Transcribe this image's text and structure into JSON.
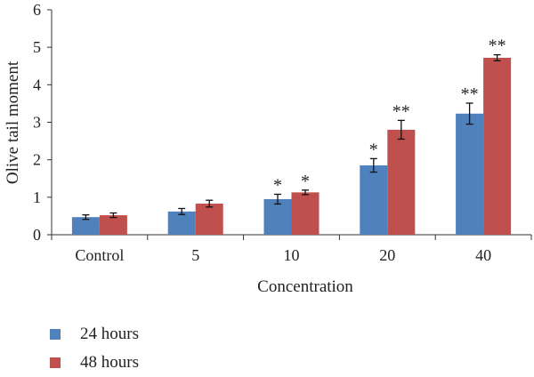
{
  "chart_data": {
    "type": "bar",
    "title": "",
    "xlabel": "Concentration",
    "ylabel": "Olive tail moment",
    "categories": [
      "Control",
      "5",
      "10",
      "20",
      "40"
    ],
    "ylim": [
      0,
      6
    ],
    "yticks": [
      "0",
      "1",
      "2",
      "3",
      "4",
      "5",
      "6"
    ],
    "grid": false,
    "legend_position": "bottom-left",
    "series": [
      {
        "name": "24 hours",
        "color": "#4F81BD",
        "values": [
          0.47,
          0.62,
          0.95,
          1.85,
          3.23
        ],
        "errors": [
          0.06,
          0.08,
          0.13,
          0.18,
          0.28
        ],
        "annotations": [
          "",
          "",
          "*",
          "*",
          "**"
        ]
      },
      {
        "name": "48 hours",
        "color": "#C0504D",
        "values": [
          0.52,
          0.83,
          1.13,
          2.8,
          4.72
        ],
        "errors": [
          0.06,
          0.09,
          0.06,
          0.25,
          0.08
        ],
        "annotations": [
          "",
          "",
          "*",
          "**",
          "**"
        ]
      }
    ]
  }
}
